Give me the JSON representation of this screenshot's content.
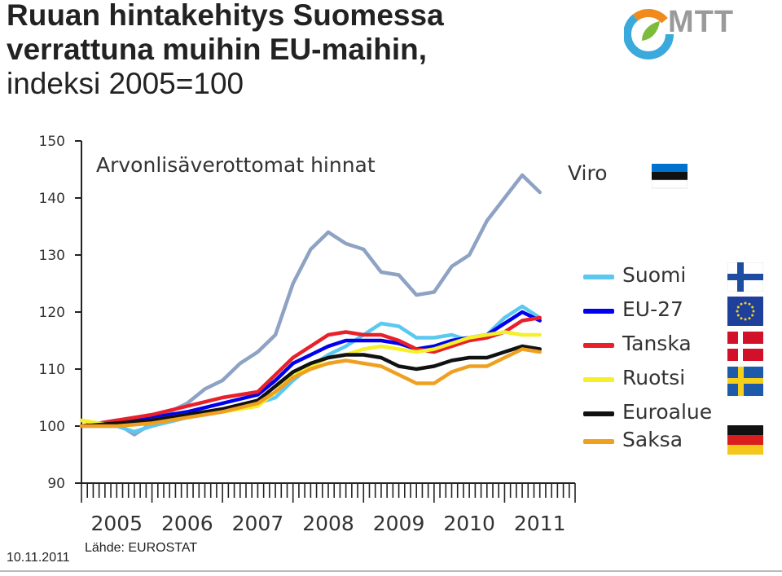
{
  "header": {
    "title_line1": "Ruuan hintakehitys Suomessa",
    "title_line2": "verrattuna muihin EU-maihin,",
    "title_line3": "indeksi 2005=100",
    "logo_text": "MTT"
  },
  "footer": {
    "date": "10.11.2011",
    "source": "Lähde: EUROSTAT"
  },
  "chart_data": {
    "type": "line",
    "subtitle": "Arvonlisäverottomat hinnat",
    "ylim": [
      90,
      150
    ],
    "yticks": [
      90,
      100,
      110,
      120,
      130,
      140,
      150
    ],
    "xlim": [
      2005.0,
      2012.0
    ],
    "xtick_labels": [
      "2005",
      "2006",
      "2007",
      "2008",
      "2009",
      "2010",
      "2011"
    ],
    "x_label_positions": [
      2005.5,
      2006.5,
      2007.5,
      2008.5,
      2009.5,
      2010.5,
      2011.5
    ],
    "legend_position": "right",
    "series": [
      {
        "name": "Viro",
        "color": "#8EA2C4",
        "points": [
          [
            2005.0,
            100
          ],
          [
            2005.5,
            100.5
          ],
          [
            2005.75,
            98.5
          ],
          [
            2006.0,
            100.5
          ],
          [
            2006.25,
            102.5
          ],
          [
            2006.5,
            104
          ],
          [
            2006.75,
            106.5
          ],
          [
            2007.0,
            108
          ],
          [
            2007.25,
            111
          ],
          [
            2007.5,
            113
          ],
          [
            2007.75,
            116
          ],
          [
            2008.0,
            125
          ],
          [
            2008.25,
            131
          ],
          [
            2008.5,
            134
          ],
          [
            2008.75,
            132
          ],
          [
            2009.0,
            131
          ],
          [
            2009.25,
            127
          ],
          [
            2009.5,
            126.5
          ],
          [
            2009.75,
            123
          ],
          [
            2010.0,
            123.5
          ],
          [
            2010.25,
            128
          ],
          [
            2010.5,
            130
          ],
          [
            2010.75,
            136
          ],
          [
            2011.0,
            140
          ],
          [
            2011.25,
            144
          ],
          [
            2011.5,
            141
          ]
        ]
      },
      {
        "name": "Suomi",
        "color": "#5BC8F0",
        "points": [
          [
            2005.0,
            100
          ],
          [
            2005.5,
            100
          ],
          [
            2005.75,
            99
          ],
          [
            2006.0,
            100
          ],
          [
            2006.5,
            101.5
          ],
          [
            2007.0,
            102.5
          ],
          [
            2007.5,
            104
          ],
          [
            2007.75,
            105
          ],
          [
            2008.0,
            108
          ],
          [
            2008.25,
            110.5
          ],
          [
            2008.5,
            112.5
          ],
          [
            2008.75,
            114
          ],
          [
            2009.0,
            116
          ],
          [
            2009.25,
            118
          ],
          [
            2009.5,
            117.5
          ],
          [
            2009.75,
            115.5
          ],
          [
            2010.0,
            115.5
          ],
          [
            2010.25,
            116
          ],
          [
            2010.5,
            115
          ],
          [
            2010.75,
            116
          ],
          [
            2011.0,
            119
          ],
          [
            2011.25,
            121
          ],
          [
            2011.5,
            119
          ]
        ]
      },
      {
        "name": "EU-27",
        "color": "#0000EE",
        "points": [
          [
            2005.0,
            100
          ],
          [
            2005.5,
            101
          ],
          [
            2006.0,
            101.5
          ],
          [
            2006.5,
            102.5
          ],
          [
            2007.0,
            104
          ],
          [
            2007.5,
            105.5
          ],
          [
            2007.75,
            108
          ],
          [
            2008.0,
            111
          ],
          [
            2008.25,
            112.5
          ],
          [
            2008.5,
            114
          ],
          [
            2008.75,
            115
          ],
          [
            2009.0,
            115
          ],
          [
            2009.25,
            115
          ],
          [
            2009.5,
            114.5
          ],
          [
            2009.75,
            113.5
          ],
          [
            2010.0,
            114
          ],
          [
            2010.25,
            115
          ],
          [
            2010.5,
            115.5
          ],
          [
            2010.75,
            116
          ],
          [
            2011.0,
            118
          ],
          [
            2011.25,
            120
          ],
          [
            2011.5,
            118.5
          ]
        ]
      },
      {
        "name": "Tanska",
        "color": "#E8202A",
        "points": [
          [
            2005.0,
            100
          ],
          [
            2005.5,
            101
          ],
          [
            2006.0,
            102
          ],
          [
            2006.5,
            103.5
          ],
          [
            2007.0,
            105
          ],
          [
            2007.5,
            106
          ],
          [
            2007.75,
            109
          ],
          [
            2008.0,
            112
          ],
          [
            2008.25,
            114
          ],
          [
            2008.5,
            116
          ],
          [
            2008.75,
            116.5
          ],
          [
            2009.0,
            116
          ],
          [
            2009.25,
            116
          ],
          [
            2009.5,
            115
          ],
          [
            2009.75,
            113.5
          ],
          [
            2010.0,
            113
          ],
          [
            2010.25,
            114
          ],
          [
            2010.5,
            115
          ],
          [
            2010.75,
            115.5
          ],
          [
            2011.0,
            116.5
          ],
          [
            2011.25,
            118.5
          ],
          [
            2011.5,
            119
          ]
        ]
      },
      {
        "name": "Ruotsi",
        "color": "#F4F02A",
        "points": [
          [
            2005.0,
            101
          ],
          [
            2005.5,
            100
          ],
          [
            2006.0,
            101
          ],
          [
            2006.5,
            102
          ],
          [
            2007.0,
            102.5
          ],
          [
            2007.5,
            103.5
          ],
          [
            2007.75,
            106
          ],
          [
            2008.0,
            109
          ],
          [
            2008.25,
            110.5
          ],
          [
            2008.5,
            112
          ],
          [
            2008.75,
            112.5
          ],
          [
            2009.0,
            113.5
          ],
          [
            2009.25,
            114
          ],
          [
            2009.5,
            113.5
          ],
          [
            2009.75,
            113
          ],
          [
            2010.0,
            113.5
          ],
          [
            2010.25,
            114.5
          ],
          [
            2010.5,
            115.5
          ],
          [
            2010.75,
            116
          ],
          [
            2011.0,
            116.5
          ],
          [
            2011.25,
            116
          ],
          [
            2011.5,
            116
          ]
        ]
      },
      {
        "name": "Euroalue",
        "color": "#111111",
        "points": [
          [
            2005.0,
            100
          ],
          [
            2005.5,
            100.5
          ],
          [
            2006.0,
            101
          ],
          [
            2006.5,
            102
          ],
          [
            2007.0,
            103
          ],
          [
            2007.5,
            104.5
          ],
          [
            2007.75,
            107
          ],
          [
            2008.0,
            109.5
          ],
          [
            2008.25,
            111
          ],
          [
            2008.5,
            112
          ],
          [
            2008.75,
            112.5
          ],
          [
            2009.0,
            112.5
          ],
          [
            2009.25,
            112
          ],
          [
            2009.5,
            110.5
          ],
          [
            2009.75,
            110
          ],
          [
            2010.0,
            110.5
          ],
          [
            2010.25,
            111.5
          ],
          [
            2010.5,
            112
          ],
          [
            2010.75,
            112
          ],
          [
            2011.0,
            113
          ],
          [
            2011.25,
            114
          ],
          [
            2011.5,
            113.5
          ]
        ]
      },
      {
        "name": "Saksa",
        "color": "#F0A020",
        "points": [
          [
            2005.0,
            100
          ],
          [
            2005.5,
            100
          ],
          [
            2006.0,
            100.5
          ],
          [
            2006.5,
            101.5
          ],
          [
            2007.0,
            102.5
          ],
          [
            2007.5,
            104
          ],
          [
            2007.75,
            106
          ],
          [
            2008.0,
            108.5
          ],
          [
            2008.25,
            110
          ],
          [
            2008.5,
            111
          ],
          [
            2008.75,
            111.5
          ],
          [
            2009.0,
            111
          ],
          [
            2009.25,
            110.5
          ],
          [
            2009.5,
            109
          ],
          [
            2009.75,
            107.5
          ],
          [
            2010.0,
            107.5
          ],
          [
            2010.25,
            109.5
          ],
          [
            2010.5,
            110.5
          ],
          [
            2010.75,
            110.5
          ],
          [
            2011.0,
            112
          ],
          [
            2011.25,
            113.5
          ],
          [
            2011.5,
            113
          ]
        ]
      }
    ]
  },
  "legend": {
    "items": [
      {
        "label": "Suomi",
        "color": "#5BC8F0",
        "flag": "finland-flag-icon"
      },
      {
        "label": "EU-27",
        "color": "#0000EE",
        "flag": "eu-flag-icon"
      },
      {
        "label": "Tanska",
        "color": "#E8202A",
        "flag": "denmark-flag-icon"
      },
      {
        "label": "Ruotsi",
        "color": "#F4F02A",
        "flag": "sweden-flag-icon"
      },
      {
        "label": "Euroalue",
        "color": "#111111",
        "flag": ""
      },
      {
        "label": "Saksa",
        "color": "#F0A020",
        "flag": "germany-flag-icon"
      }
    ],
    "viro_label": "Viro",
    "viro_flag": "estonia-flag-icon"
  }
}
